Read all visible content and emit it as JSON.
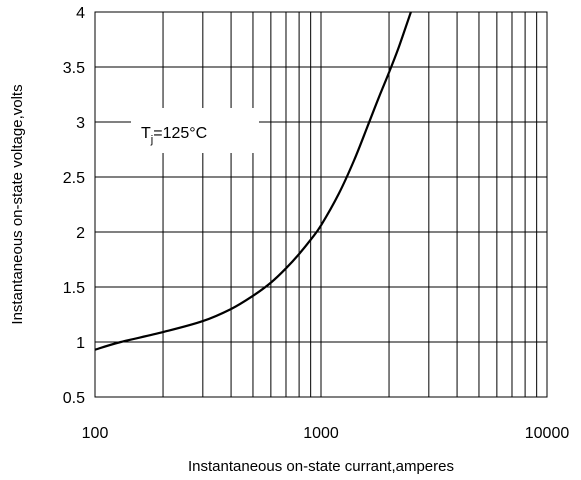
{
  "chart_data": {
    "type": "line",
    "title": "",
    "xlabel": "Instantaneous on-state currant,amperes",
    "ylabel": "Instantaneous on-state voltage,volts",
    "x_scale": "log",
    "xlim": [
      100,
      10000
    ],
    "ylim": [
      0.5,
      4
    ],
    "x_ticks": [
      100,
      1000,
      10000
    ],
    "x_tick_labels": [
      "100",
      "1000",
      "10000"
    ],
    "y_ticks": [
      0.5,
      1,
      1.5,
      2,
      2.5,
      3,
      3.5,
      4
    ],
    "y_tick_labels": [
      "0.5",
      "1",
      "1.5",
      "2",
      "2.5",
      "3",
      "3.5",
      "4"
    ],
    "grid": true,
    "annotation": {
      "text_main": "T",
      "text_sub": "j",
      "text_rest": "=125°C"
    },
    "series": [
      {
        "points": [
          [
            100,
            0.93
          ],
          [
            130,
            1.0
          ],
          [
            200,
            1.09
          ],
          [
            300,
            1.19
          ],
          [
            400,
            1.3
          ],
          [
            500,
            1.42
          ],
          [
            600,
            1.54
          ],
          [
            700,
            1.67
          ],
          [
            800,
            1.8
          ],
          [
            900,
            1.93
          ],
          [
            1000,
            2.06
          ],
          [
            1200,
            2.35
          ],
          [
            1400,
            2.65
          ],
          [
            1600,
            2.95
          ],
          [
            1800,
            3.22
          ],
          [
            2000,
            3.45
          ],
          [
            2200,
            3.67
          ],
          [
            2500,
            4.0
          ]
        ],
        "color": "#000000"
      }
    ]
  }
}
